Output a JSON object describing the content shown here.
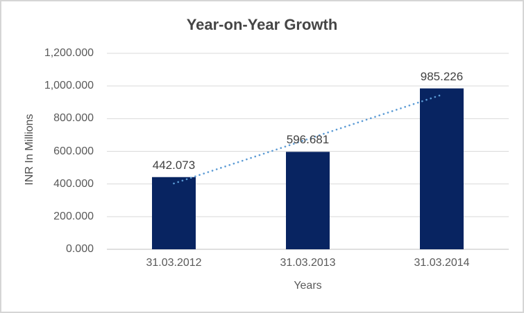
{
  "chart_data": {
    "type": "bar",
    "title": "Year-on-Year Growth",
    "xlabel": "Years",
    "ylabel": "INR In Millions",
    "categories": [
      "31.03.2012",
      "31.03.2013",
      "31.03.2014"
    ],
    "values": [
      442.073,
      596.681,
      985.226
    ],
    "data_labels": [
      "442.073",
      "596.681",
      "985.226"
    ],
    "yticks": [
      {
        "value": 0,
        "label": "0.000"
      },
      {
        "value": 200,
        "label": "200.000"
      },
      {
        "value": 400,
        "label": "400.000"
      },
      {
        "value": 600,
        "label": "600.000"
      },
      {
        "value": 800,
        "label": "800.000"
      },
      {
        "value": 1000,
        "label": "1,000.000"
      },
      {
        "value": 1200,
        "label": "1,200.000"
      }
    ],
    "ylim": [
      0,
      1200
    ],
    "grid": true,
    "legend": false,
    "trendline": {
      "type": "linear",
      "style": "dotted"
    },
    "colors": {
      "bar": "#082461",
      "trendline": "#5b9bd5",
      "gridline": "#d9d9d9",
      "axis_line": "#bfbfbf",
      "title": "#454545",
      "axis_title": "#4c4c4c",
      "tick": "#595959",
      "data_label": "#404040",
      "border": "#d5d5d5"
    }
  }
}
